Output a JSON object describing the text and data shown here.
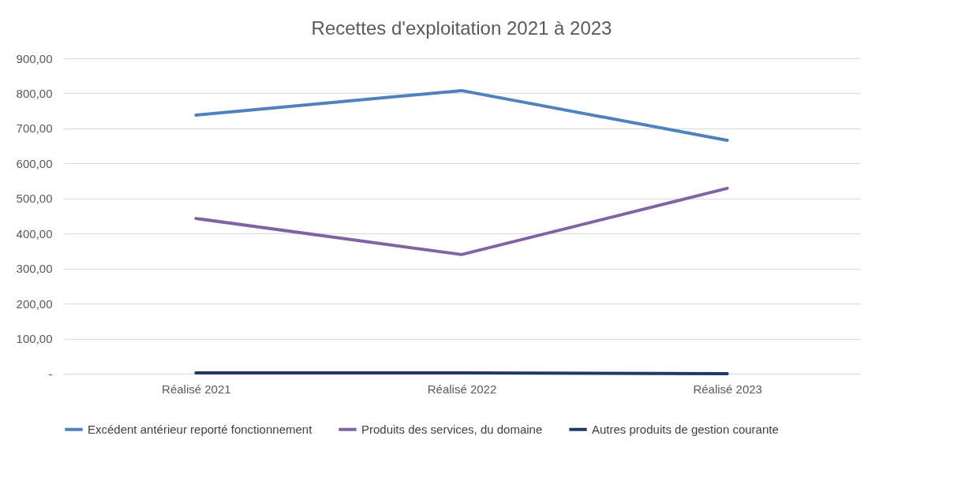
{
  "chart_data": {
    "type": "line",
    "title": "Recettes d'exploitation 2021 à 2023",
    "categories": [
      "Réalisé 2021",
      "Réalisé 2022",
      "Réalisé 2023"
    ],
    "series": [
      {
        "name": "Excédent antérieur reporté fonctionnement",
        "color": "#4f81bd",
        "values": [
          738,
          808,
          666
        ]
      },
      {
        "name": "Produits des services, du domaine",
        "color": "#8064a2",
        "values": [
          443,
          340,
          529
        ]
      },
      {
        "name": "Autres produits de gestion courante",
        "color": "#1f3864",
        "values": [
          2,
          2,
          0
        ]
      }
    ],
    "ylim": [
      0,
      900
    ],
    "yticks": [
      {
        "value": 0,
        "label": "-"
      },
      {
        "value": 100,
        "label": "100,00"
      },
      {
        "value": 200,
        "label": "200,00"
      },
      {
        "value": 300,
        "label": "300,00"
      },
      {
        "value": 400,
        "label": "400,00"
      },
      {
        "value": 500,
        "label": "500,00"
      },
      {
        "value": 600,
        "label": "600,00"
      },
      {
        "value": 700,
        "label": "700,00"
      },
      {
        "value": 800,
        "label": "800,00"
      },
      {
        "value": 900,
        "label": "900,00"
      }
    ],
    "grid": "y",
    "legend": "bottom",
    "marker": "none",
    "line_style": "solid"
  }
}
